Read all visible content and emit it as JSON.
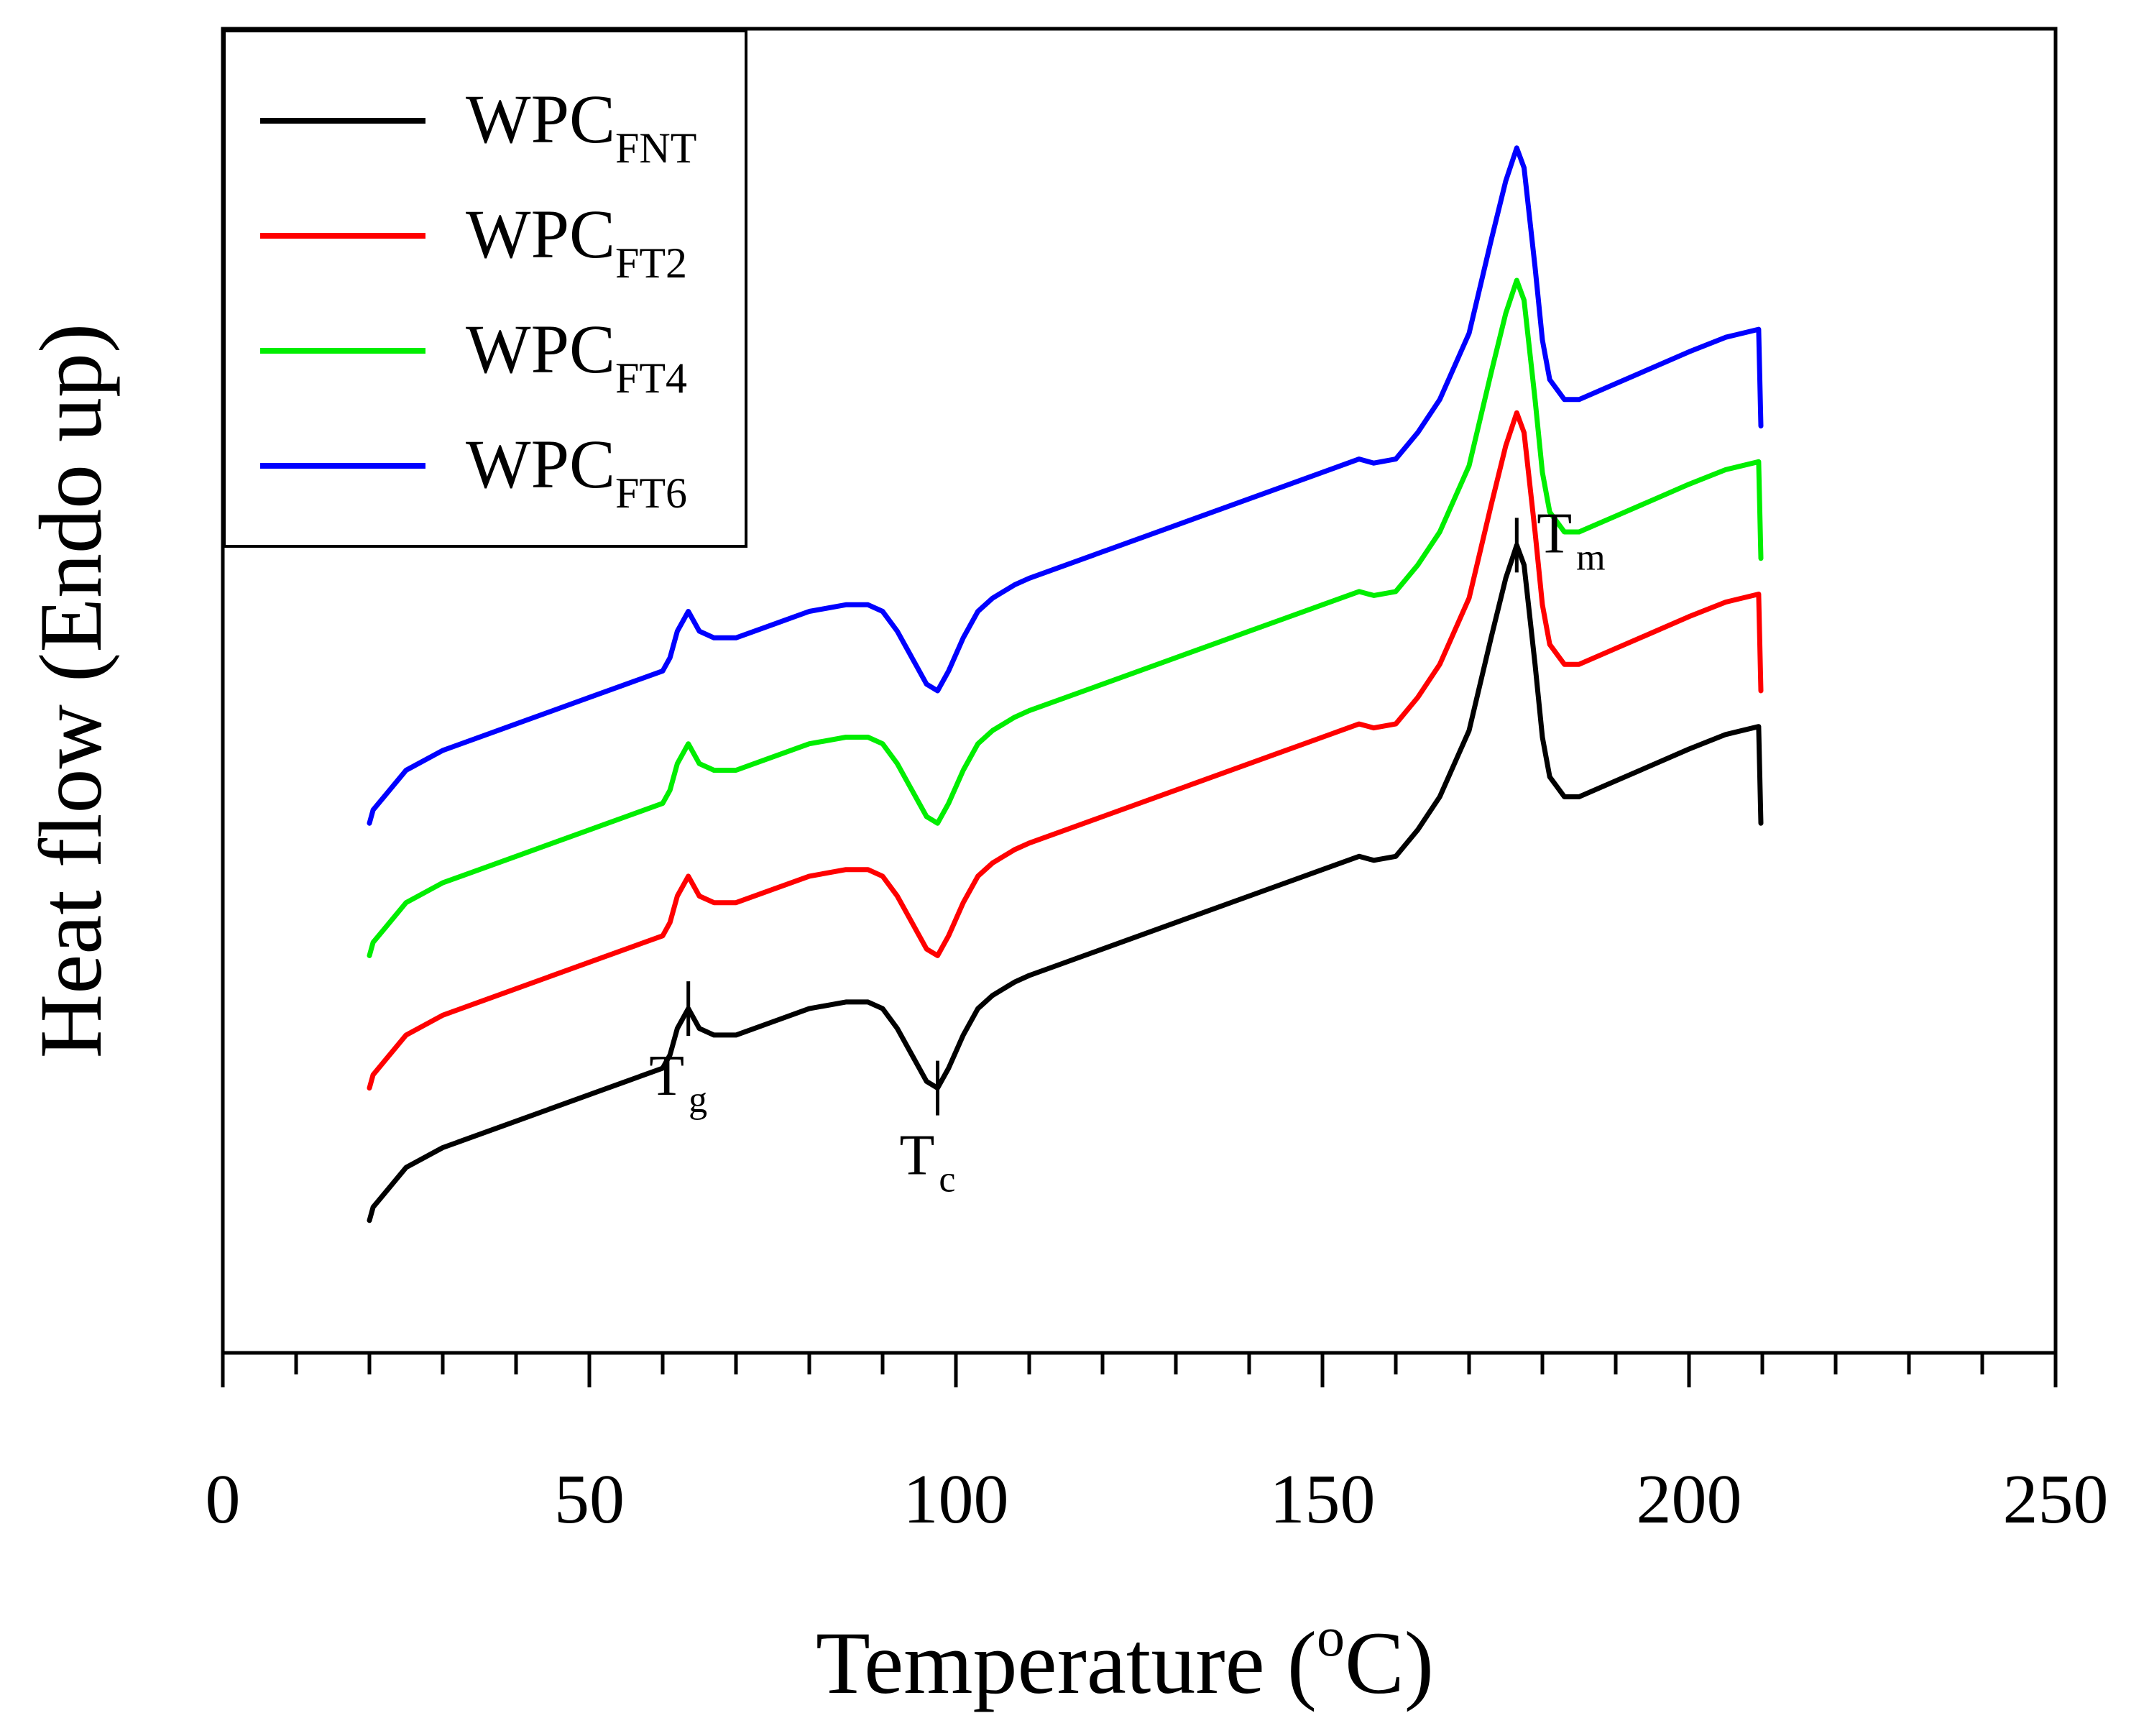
{
  "chart_data": {
    "type": "line",
    "title": "",
    "xlabel": "Temperature (",
    "xlabel_sup": "o",
    "xlabel_tail": "C)",
    "ylabel": "Heat flow (Endo up)",
    "xlim": [
      0,
      250
    ],
    "ylim": [
      0,
      10
    ],
    "x_ticks": [
      0,
      50,
      100,
      150,
      200,
      250
    ],
    "x_tick_labels": [
      "0",
      "50",
      "100",
      "150",
      "200",
      "250"
    ],
    "y_ticks_visible": false,
    "grid": false,
    "legend_position": "top-left",
    "series": [
      {
        "name": "WPC",
        "sub": "FNT",
        "color": "#000000",
        "x": [
          20,
          20.5,
          22,
          25,
          30,
          40,
          50,
          55,
          60,
          61,
          62,
          63.5,
          65,
          67,
          70,
          75,
          80,
          85,
          88,
          90,
          92,
          94,
          96,
          97.5,
          99,
          101,
          103,
          105,
          108,
          110,
          120,
          130,
          140,
          150,
          155,
          157,
          160,
          163,
          166,
          170,
          173,
          175,
          176.5,
          177.5,
          179,
          180,
          181,
          183,
          185,
          190,
          195,
          200,
          205,
          209.5,
          209.8
        ],
        "y": [
          1.0,
          1.1,
          1.2,
          1.4,
          1.55,
          1.75,
          1.95,
          2.05,
          2.15,
          2.25,
          2.45,
          2.6,
          2.45,
          2.4,
          2.4,
          2.5,
          2.6,
          2.65,
          2.65,
          2.6,
          2.45,
          2.25,
          2.05,
          2.0,
          2.15,
          2.4,
          2.6,
          2.7,
          2.8,
          2.85,
          3.05,
          3.25,
          3.45,
          3.65,
          3.75,
          3.72,
          3.75,
          3.95,
          4.2,
          4.7,
          5.4,
          5.85,
          6.1,
          5.95,
          5.2,
          4.65,
          4.35,
          4.2,
          4.2,
          4.32,
          4.44,
          4.56,
          4.67,
          4.73,
          4.0
        ]
      },
      {
        "name": "WPC",
        "sub": "FT2",
        "color": "#ff0000",
        "x": [
          20,
          20.5,
          22,
          25,
          30,
          40,
          50,
          55,
          60,
          61,
          62,
          63.5,
          65,
          67,
          70,
          75,
          80,
          85,
          88,
          90,
          92,
          94,
          96,
          97.5,
          99,
          101,
          103,
          105,
          108,
          110,
          120,
          130,
          140,
          150,
          155,
          157,
          160,
          163,
          166,
          170,
          173,
          175,
          176.5,
          177.5,
          179,
          180,
          181,
          183,
          185,
          190,
          195,
          200,
          205,
          209.5,
          209.8
        ],
        "y": [
          2.0,
          2.1,
          2.2,
          2.4,
          2.55,
          2.75,
          2.95,
          3.05,
          3.15,
          3.25,
          3.45,
          3.6,
          3.45,
          3.4,
          3.4,
          3.5,
          3.6,
          3.65,
          3.65,
          3.6,
          3.45,
          3.25,
          3.05,
          3.0,
          3.15,
          3.4,
          3.6,
          3.7,
          3.8,
          3.85,
          4.05,
          4.25,
          4.45,
          4.65,
          4.75,
          4.72,
          4.75,
          4.95,
          5.2,
          5.7,
          6.4,
          6.85,
          7.1,
          6.95,
          6.2,
          5.65,
          5.35,
          5.2,
          5.2,
          5.32,
          5.44,
          5.56,
          5.67,
          5.73,
          5.0
        ]
      },
      {
        "name": "WPC",
        "sub": "FT4",
        "color": "#00ee00",
        "x": [
          20,
          20.5,
          22,
          25,
          30,
          40,
          50,
          55,
          60,
          61,
          62,
          63.5,
          65,
          67,
          70,
          75,
          80,
          85,
          88,
          90,
          92,
          94,
          96,
          97.5,
          99,
          101,
          103,
          105,
          108,
          110,
          120,
          130,
          140,
          150,
          155,
          157,
          160,
          163,
          166,
          170,
          173,
          175,
          176.5,
          177.5,
          179,
          180,
          181,
          183,
          185,
          190,
          195,
          200,
          205,
          209.5,
          209.8
        ],
        "y": [
          3.0,
          3.1,
          3.2,
          3.4,
          3.55,
          3.75,
          3.95,
          4.05,
          4.15,
          4.25,
          4.45,
          4.6,
          4.45,
          4.4,
          4.4,
          4.5,
          4.6,
          4.65,
          4.65,
          4.6,
          4.45,
          4.25,
          4.05,
          4.0,
          4.15,
          4.4,
          4.6,
          4.7,
          4.8,
          4.85,
          5.05,
          5.25,
          5.45,
          5.65,
          5.75,
          5.72,
          5.75,
          5.95,
          6.2,
          6.7,
          7.4,
          7.85,
          8.1,
          7.95,
          7.2,
          6.65,
          6.35,
          6.2,
          6.2,
          6.32,
          6.44,
          6.56,
          6.67,
          6.73,
          6.0
        ]
      },
      {
        "name": "WPC",
        "sub": "FT6",
        "color": "#0000ff",
        "x": [
          20,
          20.5,
          22,
          25,
          30,
          40,
          50,
          55,
          60,
          61,
          62,
          63.5,
          65,
          67,
          70,
          75,
          80,
          85,
          88,
          90,
          92,
          94,
          96,
          97.5,
          99,
          101,
          103,
          105,
          108,
          110,
          120,
          130,
          140,
          150,
          155,
          157,
          160,
          163,
          166,
          170,
          173,
          175,
          176.5,
          177.5,
          179,
          180,
          181,
          183,
          185,
          190,
          195,
          200,
          205,
          209.5,
          209.8
        ],
        "y": [
          4.0,
          4.1,
          4.2,
          4.4,
          4.55,
          4.75,
          4.95,
          5.05,
          5.15,
          5.25,
          5.45,
          5.6,
          5.45,
          5.4,
          5.4,
          5.5,
          5.6,
          5.65,
          5.65,
          5.6,
          5.45,
          5.25,
          5.05,
          5.0,
          5.15,
          5.4,
          5.6,
          5.7,
          5.8,
          5.85,
          6.05,
          6.25,
          6.45,
          6.65,
          6.75,
          6.72,
          6.75,
          6.95,
          7.2,
          7.7,
          8.4,
          8.85,
          9.1,
          8.95,
          8.2,
          7.65,
          7.35,
          7.2,
          7.2,
          7.32,
          7.44,
          7.56,
          7.67,
          7.73,
          7.0
        ]
      }
    ],
    "annotations": [
      {
        "label": "T",
        "sub": "g",
        "x": 63.5,
        "y": 2.6,
        "side": "below"
      },
      {
        "label": "T",
        "sub": "c",
        "x": 97.5,
        "y": 2.0,
        "side": "below"
      },
      {
        "label": "T",
        "sub": "m",
        "x": 176.5,
        "y": 6.1,
        "side": "right"
      }
    ]
  }
}
